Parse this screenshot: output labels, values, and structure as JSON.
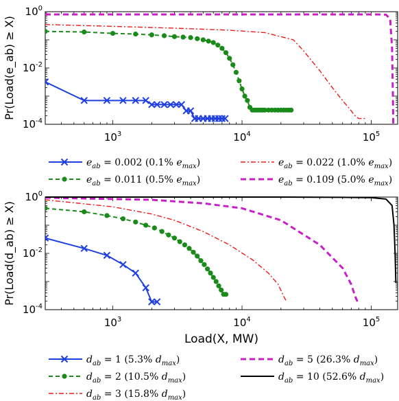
{
  "chart_data": [
    {
      "type": "line",
      "title": "",
      "xlabel": "",
      "ylabel": "Pr(Load(e_ab) ≥ X)",
      "x_scale": "log",
      "y_scale": "log",
      "xlim": [
        300,
        160000
      ],
      "ylim": [
        0.0001,
        1
      ],
      "x_ticks": [
        {
          "value": 1000,
          "base": "10",
          "exp": "3"
        },
        {
          "value": 10000,
          "base": "10",
          "exp": "4"
        },
        {
          "value": 100000,
          "base": "10",
          "exp": "5"
        }
      ],
      "y_ticks": [
        {
          "value": 1,
          "base": "10",
          "exp": "0"
        },
        {
          "value": 0.01,
          "base": "10",
          "exp": "-2"
        },
        {
          "value": 0.0001,
          "base": "10",
          "exp": "-4"
        }
      ],
      "legend_placement": "below",
      "series": [
        {
          "name": "e_ab = 0.002 (0.1% e_max)",
          "color": "#1f3fe0",
          "dash": "solid",
          "marker": "x",
          "width": 2,
          "x": [
            300,
            600,
            900,
            1200,
            1500,
            1800,
            2000,
            2200,
            2500,
            2800,
            3100,
            3400,
            3700,
            4000,
            4300,
            4600,
            5000,
            5400,
            5800,
            6200,
            6600,
            7000,
            7400
          ],
          "y": [
            0.0032,
            0.0007,
            0.0007,
            0.0007,
            0.0007,
            0.0007,
            0.0005,
            0.0005,
            0.0005,
            0.0005,
            0.0005,
            0.0005,
            0.0003,
            0.0003,
            0.00016,
            0.00016,
            0.00016,
            0.00016,
            0.00016,
            0.00016,
            0.00016,
            0.00016,
            0.00016
          ]
        },
        {
          "name": "e_ab = 0.011 (0.5% e_max)",
          "color": "#1a8a1a",
          "dash": "6,4",
          "marker": "dot",
          "width": 2,
          "x": [
            300,
            600,
            1000,
            1500,
            2000,
            2500,
            3000,
            3500,
            4000,
            4500,
            5000,
            5500,
            6000,
            6500,
            7000,
            7500,
            8000,
            8500,
            9000,
            9500,
            10000,
            10500,
            11000,
            11500,
            12000,
            12500,
            13000,
            13500,
            14000,
            14500,
            15000,
            16000,
            17000,
            18000,
            19000,
            20000,
            21000,
            22000,
            23000,
            24000
          ],
          "y": [
            0.2,
            0.19,
            0.17,
            0.16,
            0.15,
            0.14,
            0.13,
            0.125,
            0.12,
            0.11,
            0.1,
            0.09,
            0.08,
            0.065,
            0.05,
            0.035,
            0.022,
            0.013,
            0.007,
            0.0035,
            0.0018,
            0.001,
            0.0007,
            0.0004,
            0.00032,
            0.00032,
            0.00032,
            0.00032,
            0.00032,
            0.00032,
            0.00032,
            0.00032,
            0.00032,
            0.00032,
            0.00032,
            0.00032,
            0.00032,
            0.00032,
            0.00032,
            0.00032
          ]
        },
        {
          "name": "e_ab = 0.022 (1.0% e_max)",
          "color": "#ee1a1a",
          "dash": "7,3,2,3",
          "marker": "none",
          "width": 1.4,
          "x": [
            300,
            1000,
            3000,
            8000,
            15000,
            25000,
            30000,
            40000,
            50000,
            60000,
            70000,
            75000,
            80000,
            85000,
            90000
          ],
          "y": [
            0.35,
            0.3,
            0.26,
            0.22,
            0.18,
            0.1,
            0.04,
            0.008,
            0.002,
            0.0007,
            0.0003,
            0.0002,
            0.00016,
            0.00016,
            0.00016
          ]
        },
        {
          "name": "e_ab = 0.109 (5.0% e_max)",
          "color": "#c71fc7",
          "dash": "8,5",
          "marker": "none",
          "width": 3,
          "x": [
            300,
            10000,
            50000,
            110000,
            130000,
            140000,
            145000,
            147000,
            148000
          ],
          "y": [
            0.8,
            0.8,
            0.8,
            0.8,
            0.78,
            0.55,
            0.05,
            0.001,
            0.0001
          ]
        }
      ]
    },
    {
      "type": "line",
      "title": "",
      "xlabel": "Load(X, MW)",
      "ylabel": "Pr(Load(d_ab) ≥ X)",
      "x_scale": "log",
      "y_scale": "log",
      "xlim": [
        300,
        160000
      ],
      "ylim": [
        0.0001,
        1
      ],
      "x_ticks": [
        {
          "value": 1000,
          "base": "10",
          "exp": "3"
        },
        {
          "value": 10000,
          "base": "10",
          "exp": "4"
        },
        {
          "value": 100000,
          "base": "10",
          "exp": "5"
        }
      ],
      "y_ticks": [
        {
          "value": 1,
          "base": "10",
          "exp": "0"
        },
        {
          "value": 0.01,
          "base": "10",
          "exp": "-2"
        },
        {
          "value": 0.0001,
          "base": "10",
          "exp": "-4"
        }
      ],
      "legend_placement": "below",
      "series": [
        {
          "name": "d_ab = 1 (5.3% d_max)",
          "color": "#1f3fe0",
          "dash": "solid",
          "marker": "x",
          "width": 2,
          "x": [
            300,
            600,
            900,
            1200,
            1500,
            1800,
            2000,
            2200
          ],
          "y": [
            0.035,
            0.015,
            0.0085,
            0.004,
            0.002,
            0.0006,
            0.00019,
            0.00019
          ]
        },
        {
          "name": "d_ab = 2 (10.5% d_max)",
          "color": "#1a8a1a",
          "dash": "6,4",
          "marker": "dot",
          "width": 2,
          "x": [
            300,
            600,
            900,
            1200,
            1500,
            1800,
            2100,
            2400,
            2700,
            3000,
            3300,
            3600,
            3900,
            4200,
            4500,
            4800,
            5100,
            5400,
            5700,
            6000,
            6300,
            6600,
            6900,
            7200,
            7500
          ],
          "y": [
            0.4,
            0.3,
            0.22,
            0.17,
            0.13,
            0.1,
            0.08,
            0.06,
            0.045,
            0.035,
            0.026,
            0.02,
            0.015,
            0.011,
            0.008,
            0.0055,
            0.004,
            0.0028,
            0.002,
            0.0014,
            0.001,
            0.0007,
            0.0005,
            0.00035,
            0.00035
          ]
        },
        {
          "name": "d_ab = 3 (15.8% d_max)",
          "color": "#ee1a1a",
          "dash": "7,3,2,3",
          "marker": "none",
          "width": 1.4,
          "x": [
            300,
            1000,
            2000,
            3000,
            5000,
            8000,
            12000,
            16000,
            19000,
            21000,
            22000
          ],
          "y": [
            0.8,
            0.45,
            0.25,
            0.15,
            0.06,
            0.02,
            0.006,
            0.002,
            0.0008,
            0.0003,
            0.0002
          ]
        },
        {
          "name": "d_ab = 5 (26.3% d_max)",
          "color": "#c71fc7",
          "dash": "8,5",
          "marker": "none",
          "width": 3,
          "x": [
            300,
            2000,
            5000,
            10000,
            20000,
            40000,
            60000,
            70000,
            75000,
            80000
          ],
          "y": [
            0.95,
            0.8,
            0.6,
            0.4,
            0.15,
            0.02,
            0.003,
            0.0008,
            0.0003,
            0.00015
          ]
        },
        {
          "name": "d_ab = 10 (52.6% d_max)",
          "color": "#000000",
          "dash": "solid",
          "marker": "none",
          "width": 2,
          "x": [
            300,
            20000,
            60000,
            100000,
            130000,
            145000,
            150000,
            153000,
            155000
          ],
          "y": [
            1,
            1,
            0.98,
            0.95,
            0.85,
            0.5,
            0.1,
            0.01,
            0.0009
          ]
        }
      ]
    }
  ],
  "legend_top": [
    {
      "var": "e",
      "sub": "ab",
      "rest": " = 0.002 (0.1% ",
      "mvar": "e",
      "msub": "max",
      "close": ")"
    },
    {
      "var": "e",
      "sub": "ab",
      "rest": " = 0.022 (1.0% ",
      "mvar": "e",
      "msub": "max",
      "close": ")"
    },
    {
      "var": "e",
      "sub": "ab",
      "rest": " = 0.011 (0.5% ",
      "mvar": "e",
      "msub": "max",
      "close": ")"
    },
    {
      "var": "e",
      "sub": "ab",
      "rest": " = 0.109 (5.0% ",
      "mvar": "e",
      "msub": "max",
      "close": ")"
    }
  ],
  "legend_bottom": [
    {
      "var": "d",
      "sub": "ab",
      "rest": " = 1 (5.3% ",
      "mvar": "d",
      "msub": "max",
      "close": ")"
    },
    {
      "var": "d",
      "sub": "ab",
      "rest": " = 5 (26.3% ",
      "mvar": "d",
      "msub": "max",
      "close": ")"
    },
    {
      "var": "d",
      "sub": "ab",
      "rest": " = 2 (10.5% ",
      "mvar": "d",
      "msub": "max",
      "close": ")"
    },
    {
      "var": "d",
      "sub": "ab",
      "rest": " = 10 (52.6% ",
      "mvar": "d",
      "msub": "max",
      "close": ")"
    },
    {
      "var": "d",
      "sub": "ab",
      "rest": " = 3 (15.8% ",
      "mvar": "d",
      "msub": "max",
      "close": ")"
    }
  ]
}
